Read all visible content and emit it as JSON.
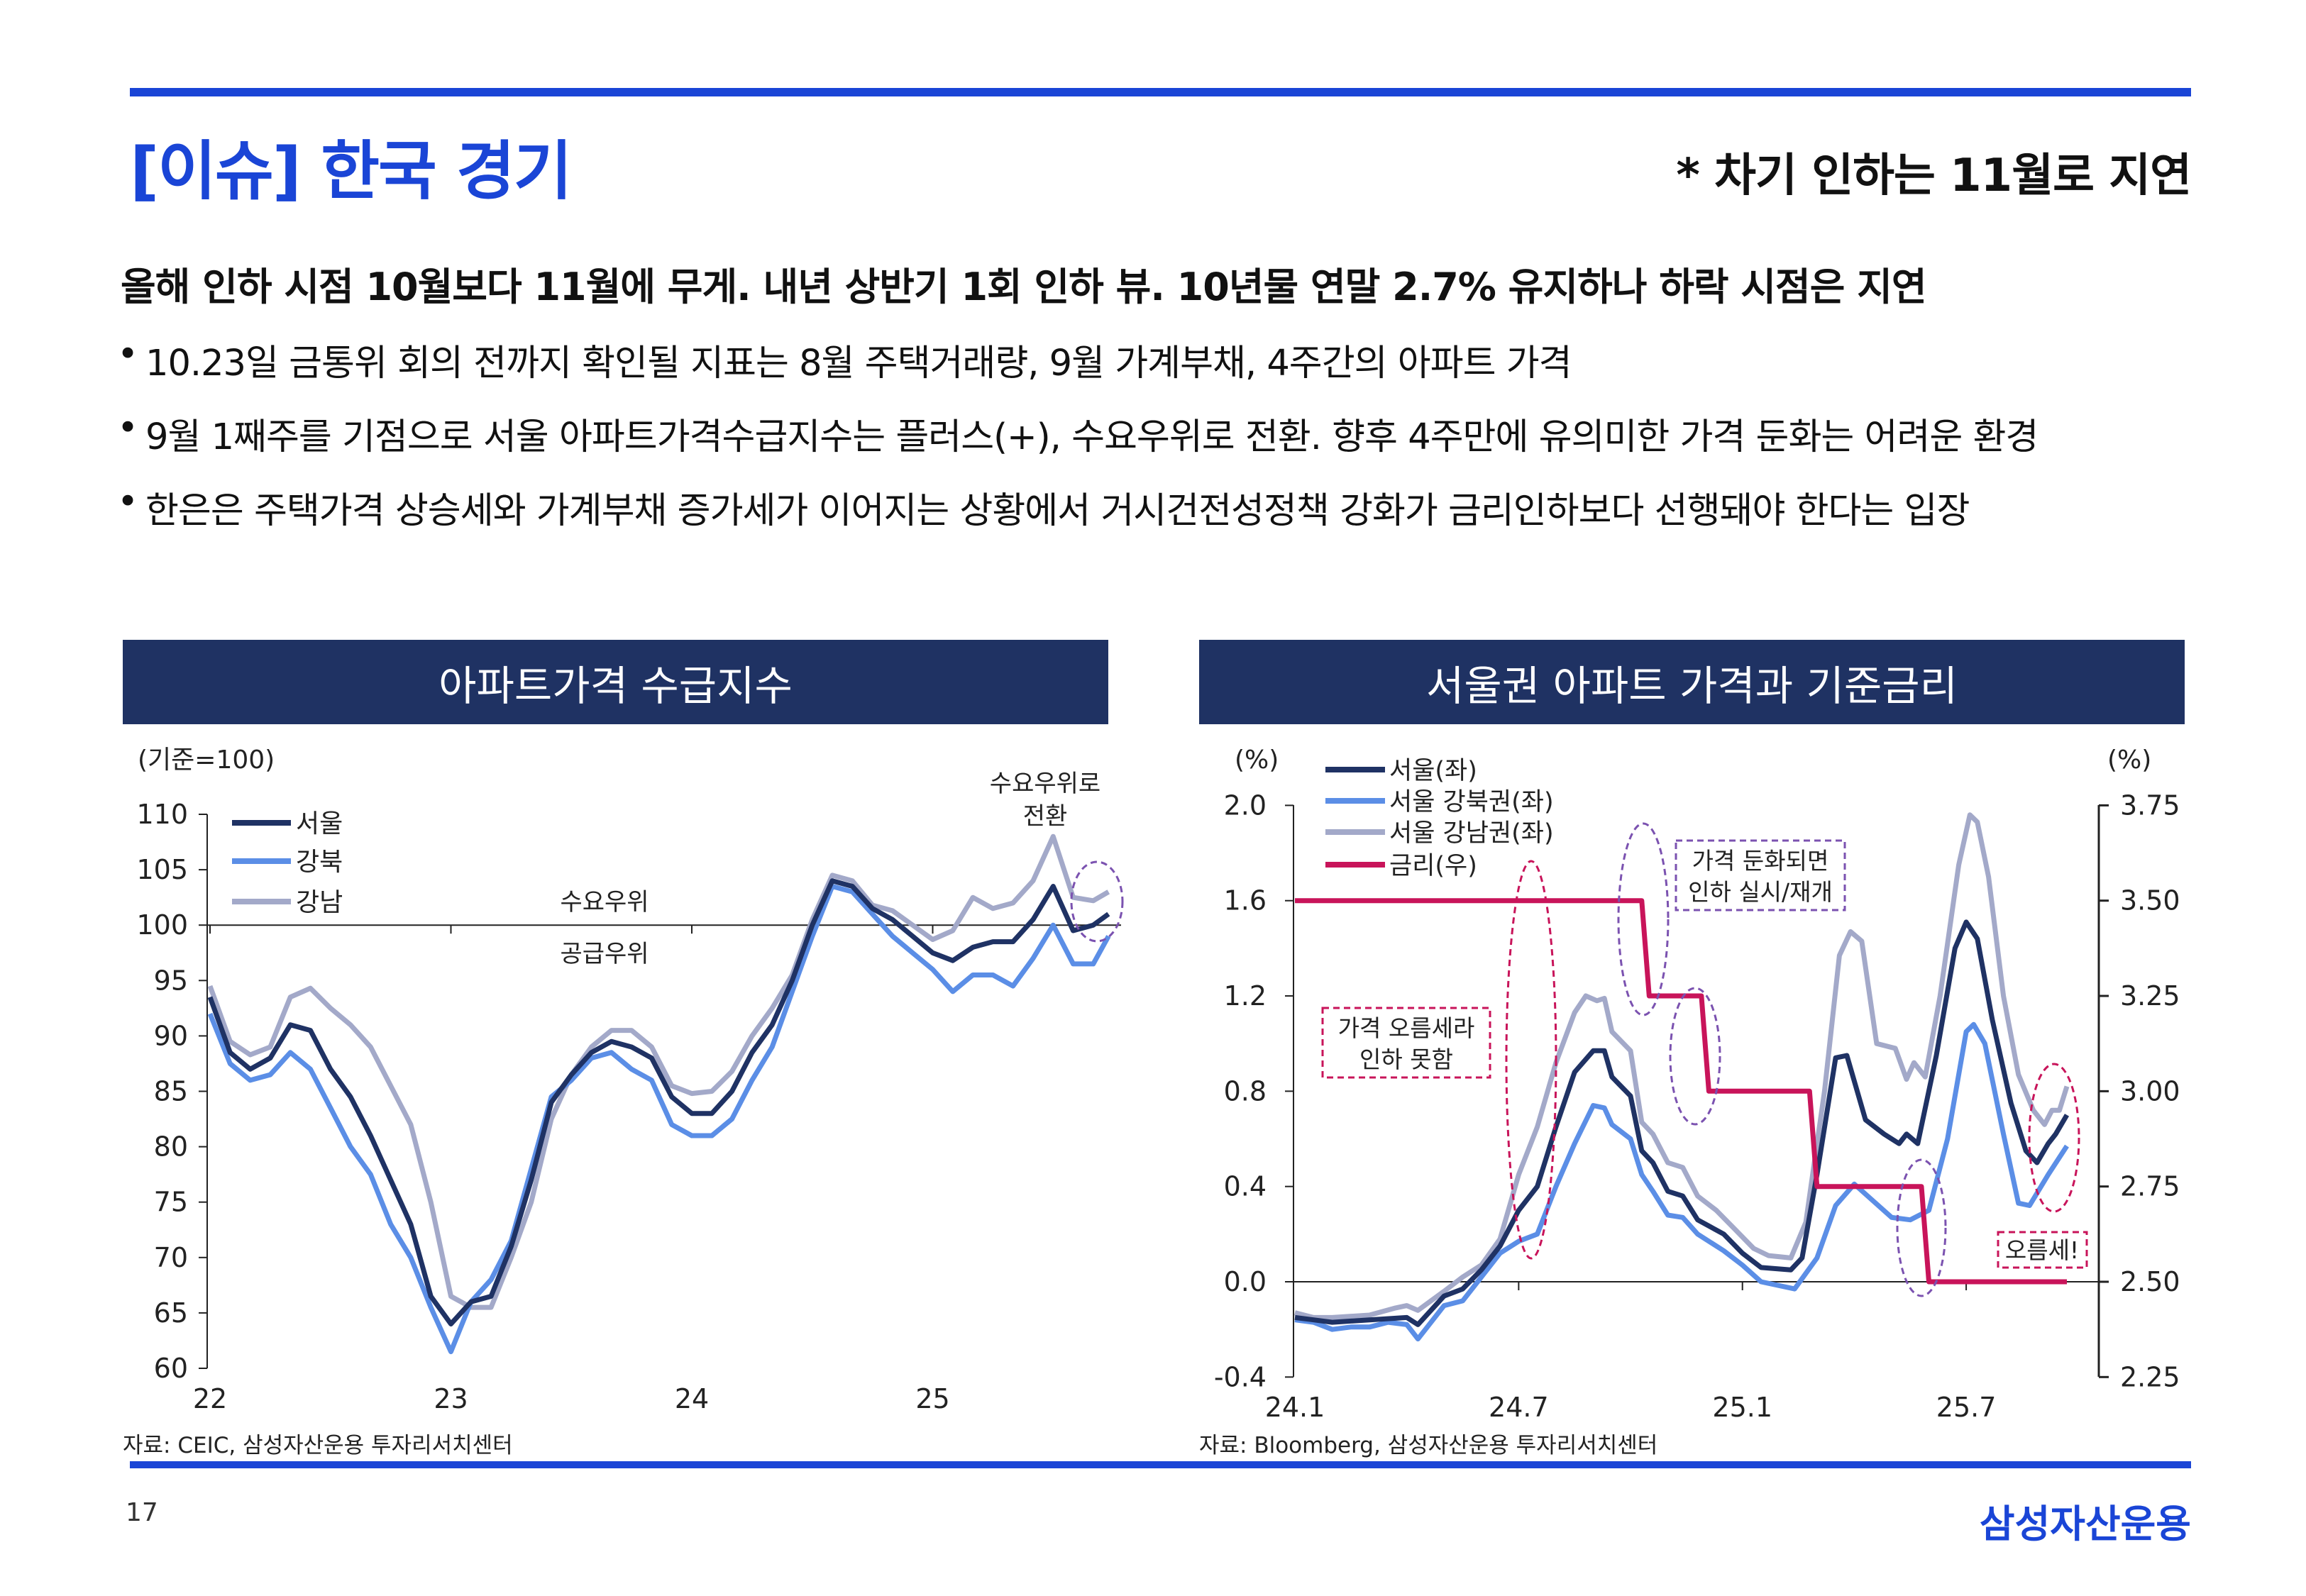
{
  "header": {
    "title": "[이슈] 한국 경기",
    "note": "* 차기 인하는 11월로 지연"
  },
  "summary": {
    "headline": "올해 인하 시점 10월보다 11월에 무게. 내년 상반기 1회 인하 뷰. 10년물 연말 2.7% 유지하나 하락 시점은 지연",
    "bullets": [
      "10.23일 금통위 회의 전까지 확인될 지표는 8월 주택거래량, 9월 가계부채, 4주간의 아파트 가격",
      "9월 1째주를 기점으로 서울 아파트가격수급지수는 플러스(+), 수요우위로 전환. 향후 4주만에 유의미한 가격 둔화는 어려운 환경",
      "한은은 주택가격 상승세와 가계부채 증가세가 이어지는 상황에서 거시건전성정책 강화가 금리인하보다 선행돼야 한다는 입장"
    ]
  },
  "footer": {
    "page_number": "17",
    "logo": "삼성자산운용"
  },
  "colors": {
    "brand_blue": "#1a45d6",
    "header_navy": "#1f3263",
    "seoul": "#1f3264",
    "gangbuk": "#5b8ee6",
    "gangnam": "#a3a9c9",
    "rate": "#c8145a",
    "annotation_purple": "#7b52b0"
  },
  "chart_data": [
    {
      "type": "line",
      "title": "아파트가격 수급지수",
      "unit_label": "(기준=100)",
      "source": "자료: CEIC, 삼성자산운용 투자리서치센터",
      "xlabel": "",
      "ylabel": "",
      "x_ticks": [
        {
          "label": "22",
          "t": 0
        },
        {
          "label": "23",
          "t": 1
        },
        {
          "label": "24",
          "t": 2
        },
        {
          "label": "25",
          "t": 3
        }
      ],
      "ylim": [
        60,
        110
      ],
      "y_ticks": [
        60,
        65,
        70,
        75,
        80,
        85,
        90,
        95,
        100,
        105,
        110
      ],
      "baseline": 100,
      "x_unit": "years since 2022 (monthly points)",
      "x": [
        0,
        0.0833,
        0.1667,
        0.25,
        0.3333,
        0.4167,
        0.5,
        0.5833,
        0.6667,
        0.75,
        0.8333,
        0.9167,
        1,
        1.0833,
        1.1667,
        1.25,
        1.3333,
        1.4167,
        1.5,
        1.5833,
        1.6667,
        1.75,
        1.8333,
        1.9167,
        2,
        2.0833,
        2.1667,
        2.25,
        2.3333,
        2.4167,
        2.5,
        2.5833,
        2.6667,
        2.75,
        2.8333,
        2.9167,
        3,
        3.0833,
        3.1667,
        3.25,
        3.3333,
        3.4167,
        3.5,
        3.5833,
        3.6667,
        3.73
      ],
      "series": [
        {
          "name": "서울",
          "values": [
            93.5,
            88.5,
            87,
            88,
            91,
            90.5,
            87,
            84.5,
            81,
            77,
            73,
            66.5,
            64,
            66,
            66.5,
            71,
            77,
            84,
            86.5,
            88.5,
            89.5,
            89,
            88,
            84.5,
            83,
            83,
            85,
            88.5,
            91,
            95,
            100,
            104,
            103.5,
            101.5,
            100.5,
            99,
            97.5,
            96.8,
            98,
            98.5,
            98.5,
            100.5,
            103.5,
            99.5,
            100,
            101
          ]
        },
        {
          "name": "강북",
          "values": [
            92,
            87.5,
            86,
            86.5,
            88.5,
            87,
            83.5,
            80,
            77.5,
            73,
            70,
            65.5,
            61.5,
            66,
            68,
            71.5,
            78,
            84.5,
            86,
            88,
            88.5,
            87,
            86,
            82,
            81,
            81,
            82.5,
            86,
            89,
            94,
            99,
            103.5,
            103,
            101,
            99,
            97.5,
            96,
            94,
            95.5,
            95.5,
            94.5,
            97,
            100,
            96.5,
            96.5,
            99
          ]
        },
        {
          "name": "강남",
          "values": [
            94.5,
            89.5,
            88.3,
            89,
            93.5,
            94.3,
            92.5,
            91,
            89,
            85.5,
            82,
            75,
            66.5,
            65.5,
            65.5,
            70,
            75,
            82.5,
            86.5,
            89,
            90.5,
            90.5,
            89,
            85.5,
            84.8,
            85,
            86.8,
            90,
            92.5,
            95.5,
            100.5,
            104.5,
            104,
            101.8,
            101.3,
            100,
            98.7,
            99.5,
            102.5,
            101.5,
            102,
            104,
            108,
            102.5,
            102.2,
            103
          ]
        }
      ],
      "annotations": {
        "above_label": "수요우위",
        "below_label": "공급우위",
        "turn_label_line1": "수요우위로",
        "turn_label_line2": "전환"
      },
      "legend": "top-left"
    },
    {
      "type": "line",
      "title": "서울권 아파트 가격과 기준금리",
      "left_unit": "(%)",
      "right_unit": "(%)",
      "source": "자료: Bloomberg, 삼성자산운용 투자리서치센터",
      "x_unit": "months since 2024.1",
      "x_ticks": [
        {
          "label": "24.1",
          "m": 0
        },
        {
          "label": "24.7",
          "m": 6
        },
        {
          "label": "25.1",
          "m": 12
        },
        {
          "label": "25.7",
          "m": 18
        }
      ],
      "ylim_left": [
        -0.4,
        2.0
      ],
      "y_ticks_left": [
        "-0.4",
        "0.0",
        "0.4",
        "0.8",
        "1.2",
        "1.6",
        "2.0"
      ],
      "ylim_right": [
        2.25,
        3.75
      ],
      "y_ticks_right": [
        "2.25",
        "2.50",
        "2.75",
        "3.00",
        "3.25",
        "3.50",
        "3.75"
      ],
      "series": [
        {
          "name": "서울(좌)",
          "axis": "left",
          "points": [
            [
              0,
              -0.15
            ],
            [
              0.5,
              -0.16
            ],
            [
              1,
              -0.17
            ],
            [
              2,
              -0.16
            ],
            [
              3,
              -0.15
            ],
            [
              3.3,
              -0.18
            ],
            [
              4,
              -0.06
            ],
            [
              4.5,
              -0.03
            ],
            [
              5,
              0.05
            ],
            [
              5.5,
              0.15
            ],
            [
              6,
              0.3
            ],
            [
              6.5,
              0.4
            ],
            [
              7,
              0.65
            ],
            [
              7.5,
              0.88
            ],
            [
              8,
              0.97
            ],
            [
              8.3,
              0.97
            ],
            [
              8.5,
              0.86
            ],
            [
              9,
              0.78
            ],
            [
              9.3,
              0.55
            ],
            [
              9.6,
              0.5
            ],
            [
              10,
              0.38
            ],
            [
              10.4,
              0.36
            ],
            [
              10.8,
              0.26
            ],
            [
              11.5,
              0.2
            ],
            [
              12,
              0.12
            ],
            [
              12.5,
              0.06
            ],
            [
              13.3,
              0.05
            ],
            [
              13.6,
              0.1
            ],
            [
              14,
              0.45
            ],
            [
              14.5,
              0.94
            ],
            [
              14.8,
              0.95
            ],
            [
              15.3,
              0.68
            ],
            [
              15.8,
              0.62
            ],
            [
              16.2,
              0.58
            ],
            [
              16.4,
              0.62
            ],
            [
              16.7,
              0.58
            ],
            [
              17.2,
              0.95
            ],
            [
              17.7,
              1.4
            ],
            [
              18,
              1.51
            ],
            [
              18.3,
              1.44
            ],
            [
              18.7,
              1.1
            ],
            [
              19.2,
              0.75
            ],
            [
              19.6,
              0.55
            ],
            [
              19.9,
              0.5
            ],
            [
              20.2,
              0.58
            ],
            [
              20.4,
              0.62
            ],
            [
              20.7,
              0.7
            ]
          ]
        },
        {
          "name": "서울 강북권(좌)",
          "axis": "left",
          "points": [
            [
              0,
              -0.16
            ],
            [
              0.5,
              -0.17
            ],
            [
              1,
              -0.2
            ],
            [
              1.5,
              -0.19
            ],
            [
              2,
              -0.19
            ],
            [
              2.5,
              -0.17
            ],
            [
              3,
              -0.18
            ],
            [
              3.3,
              -0.24
            ],
            [
              4,
              -0.1
            ],
            [
              4.5,
              -0.08
            ],
            [
              5,
              0.02
            ],
            [
              5.5,
              0.12
            ],
            [
              6,
              0.17
            ],
            [
              6.5,
              0.2
            ],
            [
              7,
              0.4
            ],
            [
              7.5,
              0.58
            ],
            [
              8,
              0.74
            ],
            [
              8.3,
              0.73
            ],
            [
              8.5,
              0.66
            ],
            [
              9,
              0.6
            ],
            [
              9.3,
              0.45
            ],
            [
              9.6,
              0.38
            ],
            [
              10,
              0.28
            ],
            [
              10.4,
              0.27
            ],
            [
              10.8,
              0.2
            ],
            [
              11.5,
              0.13
            ],
            [
              12,
              0.07
            ],
            [
              12.5,
              0
            ],
            [
              13.4,
              -0.03
            ],
            [
              14,
              0.1
            ],
            [
              14.5,
              0.32
            ],
            [
              15,
              0.41
            ],
            [
              15.5,
              0.34
            ],
            [
              16,
              0.27
            ],
            [
              16.5,
              0.26
            ],
            [
              17,
              0.3
            ],
            [
              17.5,
              0.6
            ],
            [
              18,
              1.05
            ],
            [
              18.2,
              1.08
            ],
            [
              18.5,
              1.0
            ],
            [
              19,
              0.62
            ],
            [
              19.4,
              0.33
            ],
            [
              19.7,
              0.32
            ],
            [
              20.2,
              0.45
            ],
            [
              20.7,
              0.57
            ]
          ]
        },
        {
          "name": "서울 강남권(좌)",
          "axis": "left",
          "points": [
            [
              0,
              -0.13
            ],
            [
              0.5,
              -0.15
            ],
            [
              1,
              -0.15
            ],
            [
              2,
              -0.14
            ],
            [
              2.7,
              -0.11
            ],
            [
              3,
              -0.1
            ],
            [
              3.3,
              -0.12
            ],
            [
              4,
              -0.04
            ],
            [
              4.5,
              0.02
            ],
            [
              5,
              0.07
            ],
            [
              5.5,
              0.18
            ],
            [
              6,
              0.45
            ],
            [
              6.5,
              0.65
            ],
            [
              7,
              0.92
            ],
            [
              7.5,
              1.13
            ],
            [
              7.8,
              1.2
            ],
            [
              8.1,
              1.18
            ],
            [
              8.3,
              1.19
            ],
            [
              8.5,
              1.05
            ],
            [
              9,
              0.97
            ],
            [
              9.3,
              0.67
            ],
            [
              9.6,
              0.62
            ],
            [
              10,
              0.5
            ],
            [
              10.4,
              0.48
            ],
            [
              10.8,
              0.36
            ],
            [
              11.3,
              0.3
            ],
            [
              11.8,
              0.22
            ],
            [
              12.3,
              0.14
            ],
            [
              12.7,
              0.11
            ],
            [
              13.3,
              0.1
            ],
            [
              13.7,
              0.25
            ],
            [
              14.2,
              0.8
            ],
            [
              14.6,
              1.37
            ],
            [
              14.9,
              1.47
            ],
            [
              15.2,
              1.43
            ],
            [
              15.6,
              1.0
            ],
            [
              16.1,
              0.98
            ],
            [
              16.4,
              0.85
            ],
            [
              16.6,
              0.92
            ],
            [
              16.9,
              0.86
            ],
            [
              17.3,
              1.2
            ],
            [
              17.8,
              1.75
            ],
            [
              18.1,
              1.96
            ],
            [
              18.3,
              1.93
            ],
            [
              18.6,
              1.7
            ],
            [
              19,
              1.2
            ],
            [
              19.4,
              0.87
            ],
            [
              19.8,
              0.72
            ],
            [
              20.1,
              0.66
            ],
            [
              20.3,
              0.72
            ],
            [
              20.5,
              0.72
            ],
            [
              20.7,
              0.82
            ]
          ]
        },
        {
          "name": "금리(우)",
          "axis": "right",
          "points": [
            [
              0,
              3.5
            ],
            [
              9.3,
              3.5
            ],
            [
              9.5,
              3.25
            ],
            [
              10.9,
              3.25
            ],
            [
              11.1,
              3.0
            ],
            [
              13.8,
              3.0
            ],
            [
              14.0,
              2.75
            ],
            [
              16.8,
              2.75
            ],
            [
              17.0,
              2.5
            ],
            [
              20.7,
              2.5
            ]
          ]
        }
      ],
      "annotations": {
        "box_left_line1": "가격 오름세라",
        "box_left_line2": "인하 못함",
        "box_mid_line1": "가격 둔화되면",
        "box_mid_line2": "인하 실시/재개",
        "box_right": "오름세!"
      },
      "legend": "top-left"
    }
  ]
}
